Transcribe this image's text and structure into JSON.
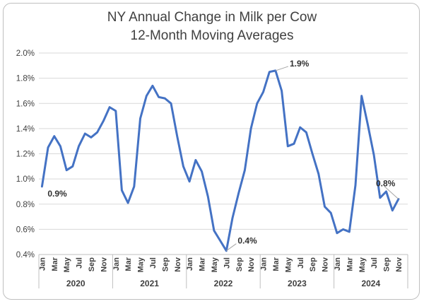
{
  "chart_data": {
    "type": "line",
    "title_lines": [
      "NY Annual Change in Milk per Cow",
      "12-Month Moving Averages"
    ],
    "xlabel": "",
    "ylabel": "",
    "ylim": [
      0.004,
      0.02
    ],
    "y_ticks": [
      {
        "value": 0.004,
        "label": "0.4%"
      },
      {
        "value": 0.006,
        "label": "0.6%"
      },
      {
        "value": 0.008,
        "label": "0.8%"
      },
      {
        "value": 0.01,
        "label": "1.0%"
      },
      {
        "value": 0.012,
        "label": "1.2%"
      },
      {
        "value": 0.014,
        "label": "1.4%"
      },
      {
        "value": 0.016,
        "label": "1.6%"
      },
      {
        "value": 0.018,
        "label": "1.8%"
      },
      {
        "value": 0.02,
        "label": "2.0%"
      }
    ],
    "grid": true,
    "x_tick_labels": [
      "Jan",
      "Mar",
      "May",
      "Jul",
      "Sep",
      "Nov"
    ],
    "x_tick_month_index": [
      0,
      2,
      4,
      6,
      8,
      10
    ],
    "years": [
      "2020",
      "2021",
      "2022",
      "2023",
      "2024"
    ],
    "line_color": "#4472C4",
    "series": [
      {
        "values": [
          0.0094,
          0.0125,
          0.0134,
          0.0126,
          0.0107,
          0.011,
          0.0126,
          0.0136,
          0.0133,
          0.0137,
          0.0146,
          0.0157,
          0.0154,
          0.0091,
          0.0081,
          0.0094,
          0.0148,
          0.0166,
          0.0174,
          0.0165,
          0.0164,
          0.016,
          0.0134,
          0.011,
          0.0098,
          0.0115,
          0.0106,
          0.0086,
          0.0059,
          0.0051,
          0.0043,
          0.0069,
          0.0089,
          0.0107,
          0.014,
          0.016,
          0.0169,
          0.0185,
          0.0186,
          0.017,
          0.0126,
          0.0128,
          0.0141,
          0.0137,
          0.012,
          0.0104,
          0.0078,
          0.0073,
          0.0057,
          0.006,
          0.0058,
          0.0095,
          0.0166,
          0.0143,
          0.0119,
          0.0085,
          0.009,
          0.0075,
          0.0084
        ]
      }
    ],
    "annotations": [
      {
        "label": "0.9%",
        "point_index": 0
      },
      {
        "label": "0.4%",
        "point_index": 30
      },
      {
        "label": "1.9%",
        "point_index": 38
      },
      {
        "label": "0.8%",
        "point_index": 58
      }
    ]
  }
}
